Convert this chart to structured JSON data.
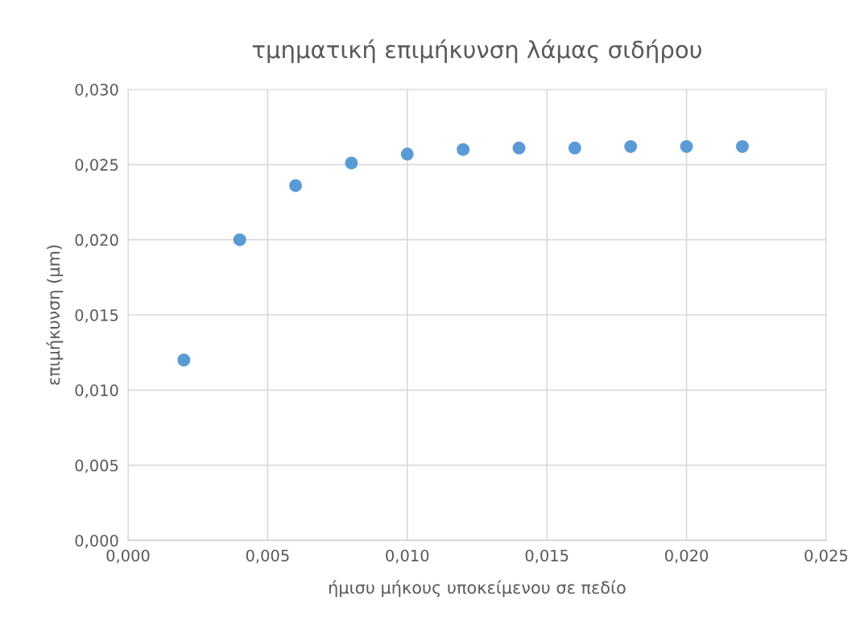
{
  "chart_data": {
    "type": "scatter",
    "title": "τμηματική επιμήκυνση λάμας σιδήρου",
    "xlabel": "ήμισυ μήκους υποκείμενου σε πεδίο",
    "ylabel": "επιμήκυνση (μm)",
    "x": [
      0.002,
      0.004,
      0.006,
      0.008,
      0.01,
      0.012,
      0.014,
      0.016,
      0.018,
      0.02,
      0.022
    ],
    "series": [
      {
        "color": "#5b9bd5",
        "values": [
          0.012,
          0.02,
          0.0236,
          0.0251,
          0.0257,
          0.026,
          0.0261,
          0.0261,
          0.0262,
          0.0262,
          0.0262
        ]
      }
    ],
    "xlim": [
      0,
      0.025
    ],
    "ylim": [
      0,
      0.03
    ],
    "xticks": [
      {
        "value": 0,
        "label": "0,000"
      },
      {
        "value": 0.005,
        "label": "0,005"
      },
      {
        "value": 0.01,
        "label": "0,010"
      },
      {
        "value": 0.015,
        "label": "0,015"
      },
      {
        "value": 0.02,
        "label": "0,020"
      },
      {
        "value": 0.025,
        "label": "0,025"
      }
    ],
    "yticks": [
      {
        "value": 0,
        "label": "0,000"
      },
      {
        "value": 0.005,
        "label": "0,005"
      },
      {
        "value": 0.01,
        "label": "0,010"
      },
      {
        "value": 0.015,
        "label": "0,015"
      },
      {
        "value": 0.02,
        "label": "0,020"
      },
      {
        "value": 0.025,
        "label": "0,025"
      },
      {
        "value": 0.03,
        "label": "0,030"
      }
    ],
    "grid": true,
    "marker": "circle",
    "legend": false
  }
}
